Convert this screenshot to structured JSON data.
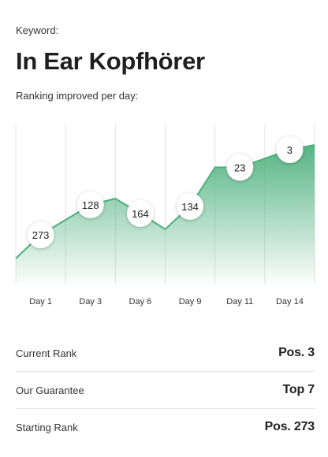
{
  "header": {
    "keyword_label": "Keyword:",
    "title": "In Ear Kopfhörer",
    "subtitle": "Ranking improved per day:"
  },
  "colors": {
    "line": "#4cb07c",
    "fill_top": "#4cb07c",
    "grid": "#e3e3e3",
    "text": "#1f1f1f"
  },
  "chart_data": {
    "type": "area",
    "categories": [
      "Day 1",
      "Day 3",
      "Day 6",
      "Day 9",
      "Day 11",
      "Day 14"
    ],
    "series": [
      {
        "values": [
          273,
          128,
          164,
          134,
          23,
          3
        ]
      }
    ],
    "y_scale": "inverted",
    "grid": true,
    "legend": "none"
  },
  "stats": [
    {
      "label": "Current Rank",
      "value": "Pos. 3"
    },
    {
      "label": "Our Guarantee",
      "value": "Top 7"
    },
    {
      "label": "Starting Rank",
      "value": "Pos. 273"
    }
  ]
}
